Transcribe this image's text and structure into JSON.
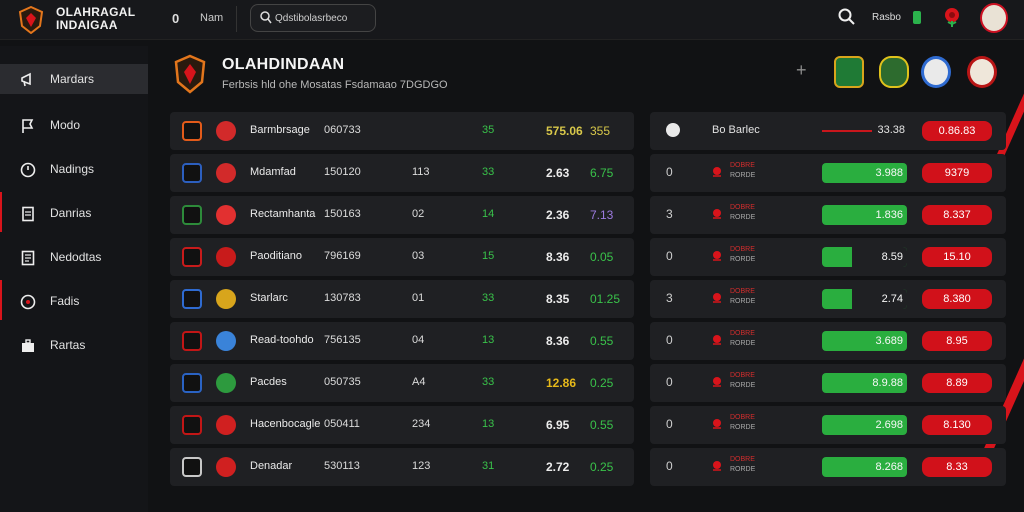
{
  "app": {
    "title_line1": "OLAHRAGAL",
    "title_line2": "INDAIGAA",
    "top_number": "0",
    "top_label": "Nam",
    "search_text": "Qdstibolasrbeco",
    "user_label": "Rasbo"
  },
  "sidebar": {
    "items": [
      {
        "label": "Mardars",
        "icon": "megaphone-icon",
        "active": true
      },
      {
        "label": "Modo",
        "icon": "flag-icon",
        "active": false
      },
      {
        "label": "Nadings",
        "icon": "clock-icon",
        "active": false
      },
      {
        "label": "Danrias",
        "icon": "document-icon",
        "active": false
      },
      {
        "label": "Nedodtas",
        "icon": "list-icon",
        "active": false
      },
      {
        "label": "Fadis",
        "icon": "record-icon",
        "active": false
      },
      {
        "label": "Rartas",
        "icon": "briefcase-icon",
        "active": false
      }
    ]
  },
  "header": {
    "title": "OLAHDINDAAN",
    "subtitle": "Ferbsis hld ohe Mosatas Fsdamaao  7DGDGO",
    "plus": "+"
  },
  "teams": [
    {
      "name": "Barmbrsage",
      "c1": "060733",
      "c2": "",
      "c3": "35",
      "c4": "575.06",
      "c5": "355",
      "crest_a": "#e35b1a",
      "crest_b": "#d22a2a"
    },
    {
      "name": "Mdamfad",
      "c1": "150120",
      "c2": "113",
      "c3": "33",
      "c4": "2.63",
      "c5": "6.75",
      "crest_a": "#2c5fbf",
      "crest_b": "#d22a2a"
    },
    {
      "name": "Rectamhanta",
      "c1": "150163",
      "c2": "02",
      "c3": "14",
      "c4": "2.36",
      "c5": "7.13",
      "crest_a": "#2d8b3a",
      "crest_b": "#e23030"
    },
    {
      "name": "Paoditiano",
      "c1": "796169",
      "c2": "03",
      "c3": "15",
      "c4": "8.36",
      "c5": "0.05",
      "crest_a": "#c81b1b",
      "crest_b": "#c81b1b"
    },
    {
      "name": "Starlarc",
      "c1": "130783",
      "c2": "01",
      "c3": "33",
      "c4": "8.35",
      "c5": "01.25",
      "crest_a": "#2f6bd1",
      "crest_b": "#d8a51c"
    },
    {
      "name": "Read-toohdo",
      "c1": "756135",
      "c2": "04",
      "c3": "13",
      "c4": "8.36",
      "c5": "0.55",
      "crest_a": "#c21616",
      "crest_b": "#3a83d9"
    },
    {
      "name": "Pacdes",
      "c1": "050735",
      "c2": "A4",
      "c3": "33",
      "c4": "12.86",
      "c5": "0.25",
      "crest_a": "#2a63c4",
      "crest_b": "#2d9a3e"
    },
    {
      "name": "Hacenbocagle",
      "c1": "050411",
      "c2": "234",
      "c3": "13",
      "c4": "6.95",
      "c5": "0.55",
      "crest_a": "#c21616",
      "crest_b": "#d02020"
    },
    {
      "name": "Denadar",
      "c1": "530113",
      "c2": "123",
      "c3": "31",
      "c4": "2.72",
      "c5": "0.25",
      "crest_a": "#c8c8c8",
      "crest_b": "#d02020"
    }
  ],
  "odds_header": {
    "label": "Bo Barlec",
    "value": "33.38",
    "badge": "0.86.83"
  },
  "odds": [
    {
      "num": "0",
      "label_top": "DOBRE",
      "label_bottom": "RORDE",
      "green_value": "3.988",
      "green_fill": 1.0,
      "red_value": "9379"
    },
    {
      "num": "3",
      "label_top": "DOBRE",
      "label_bottom": "RORDE",
      "green_value": "1.836",
      "green_fill": 1.0,
      "red_value": "8.337"
    },
    {
      "num": "0",
      "label_top": "DOBRE",
      "label_bottom": "RORDE",
      "green_value": "8.59",
      "green_fill": 0.35,
      "red_value": "15.10"
    },
    {
      "num": "3",
      "label_top": "DOBRE",
      "label_bottom": "RORDE",
      "green_value": "2.74",
      "green_fill": 0.35,
      "red_value": "8.380"
    },
    {
      "num": "0",
      "label_top": "DOBRE",
      "label_bottom": "RORDE",
      "green_value": "3.689",
      "green_fill": 1.0,
      "red_value": "8.95"
    },
    {
      "num": "0",
      "label_top": "DOBRE",
      "label_bottom": "RORDE",
      "green_value": "8.9.88",
      "green_fill": 1.0,
      "red_value": "8.89"
    },
    {
      "num": "0",
      "label_top": "DOBRE",
      "label_bottom": "RORDE",
      "green_value": "2.698",
      "green_fill": 1.0,
      "red_value": "8.130"
    },
    {
      "num": "0",
      "label_top": "DOBRE",
      "label_bottom": "RORDE",
      "green_value": "8.268",
      "green_fill": 1.0,
      "red_value": "8.33"
    }
  ],
  "colors": {
    "accent_red": "#d8141b",
    "accent_green": "#2aae3f",
    "panel": "#1f2023",
    "background": "#111214"
  }
}
